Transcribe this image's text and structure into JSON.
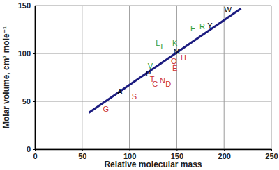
{
  "chart_data": {
    "type": "scatter",
    "x_label": "Relative molecular mass",
    "y_label": "Molar volume, cm³ mole⁻¹",
    "xlim": [
      0,
      250
    ],
    "xticks": [
      0,
      50,
      100,
      150,
      200,
      250
    ],
    "ylim": [
      0,
      150
    ],
    "yticks": [
      0,
      50,
      100,
      150
    ],
    "grid": true,
    "series": [
      {
        "type": "scatter",
        "marker": "letter",
        "labels": [
          "G",
          "A",
          "S",
          "P",
          "V",
          "T",
          "C",
          "N",
          "D",
          "L",
          "I",
          "K",
          "M",
          "Q",
          "H",
          "E",
          "F",
          "R",
          "Y",
          "W"
        ],
        "x": [
          75,
          90,
          105,
          120,
          122,
          124,
          127,
          135,
          141,
          130,
          134,
          148,
          150,
          147,
          157,
          148,
          167,
          177,
          185,
          204
        ],
        "values": [
          42,
          60,
          55,
          79,
          87,
          73,
          68,
          72,
          68,
          111,
          107,
          111,
          102,
          92,
          96,
          85,
          126,
          128,
          129,
          146
        ],
        "colors": [
          "#cc3333",
          "#000000",
          "#cc3333",
          "#000000",
          "#2e9e3e",
          "#cc3333",
          "#cc3333",
          "#cc3333",
          "#cc3333",
          "#2e9e3e",
          "#2e9e3e",
          "#2e9e3e",
          "#000000",
          "#cc3333",
          "#cc3333",
          "#cc3333",
          "#2e9e3e",
          "#2e9e3e",
          "#000000",
          "#000000"
        ]
      },
      {
        "type": "line",
        "line_style": "solid",
        "color": "#1c1c80",
        "x": [
          57,
          218
        ],
        "values": [
          38,
          147
        ]
      }
    ]
  }
}
